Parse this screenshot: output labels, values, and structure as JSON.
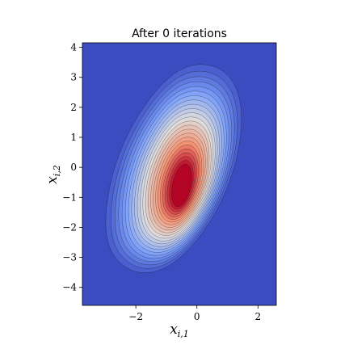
{
  "chart_data": {
    "type": "contour",
    "title": "After 0 iterations",
    "xlabel": {
      "base": "x",
      "sub": "i,1"
    },
    "ylabel": {
      "base": "x",
      "sub": "i,2"
    },
    "xlim": [
      -3.75,
      2.6
    ],
    "ylim": [
      -4.6,
      4.15
    ],
    "xticks": [
      -2,
      0,
      2
    ],
    "xtick_labels": [
      "−2",
      "0",
      "2"
    ],
    "yticks": [
      -4,
      -3,
      -2,
      -1,
      0,
      1,
      2,
      3,
      4
    ],
    "ytick_labels": [
      "−4",
      "−3",
      "−2",
      "−1",
      "0",
      "1",
      "2",
      "3",
      "4"
    ],
    "grid": false,
    "colormap": "coolwarm",
    "background_color": "#3b4cc0",
    "peak_color": "#b40426",
    "contour_lines": 24,
    "density_peak": {
      "x": -0.5,
      "y": -0.6
    }
  }
}
